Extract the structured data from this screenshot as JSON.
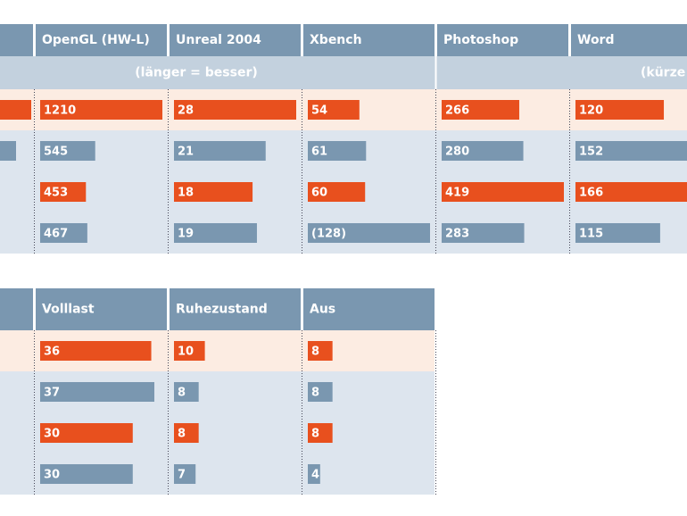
{
  "table1": {
    "columns": [
      "OpenGL (HW-L)",
      "Unreal 2004",
      "Xbench",
      "Photoshop",
      "Word"
    ],
    "notes": [
      "(länger = besser)",
      "(kürze"
    ],
    "rows": [
      [
        1210,
        28,
        54,
        266,
        120
      ],
      [
        545,
        21,
        61,
        280,
        152
      ],
      [
        453,
        18,
        60,
        419,
        166
      ],
      [
        467,
        19,
        {
          "value": 128,
          "label": "(128)"
        },
        283,
        115
      ]
    ]
  },
  "table2": {
    "columns": [
      "Volllast",
      "Ruhezustand",
      "Aus"
    ],
    "rows": [
      [
        36,
        10,
        8
      ],
      [
        37,
        8,
        8
      ],
      [
        30,
        8,
        8
      ],
      [
        30,
        7,
        4
      ]
    ]
  }
}
